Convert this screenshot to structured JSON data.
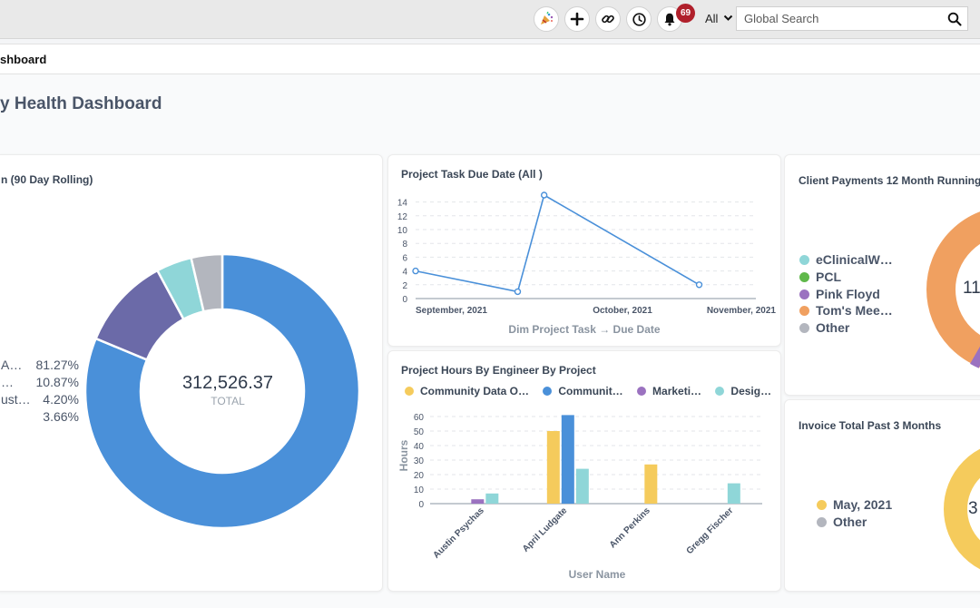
{
  "topbar": {
    "notification_count": "69",
    "search_scope": "All",
    "search_placeholder": "Global Search",
    "icons": [
      "party-popper-icon",
      "plus-icon",
      "link-icon",
      "history-icon",
      "bell-icon",
      "chevron-down-icon",
      "search-icon"
    ]
  },
  "breadcrumb": {
    "label": "shboard"
  },
  "page": {
    "title": "y Health Dashboard"
  },
  "colors": {
    "blue": "#4a90d9",
    "purple": "#6b6aa8",
    "teal": "#8fd6d8",
    "gray": "#b3b6be",
    "yellow": "#f5cb5c",
    "violet": "#9b72c0",
    "orange": "#f0a060",
    "green": "#5fb84a",
    "line": "#4a90d9"
  },
  "card1": {
    "title": "n (90 Day Rolling)",
    "total_value": "312,526.37",
    "total_label": "TOTAL",
    "legend": [
      {
        "label": "A…",
        "pct": "81.27%"
      },
      {
        "label": "…",
        "pct": "10.87%"
      },
      {
        "label": "ust…",
        "pct": "4.20%"
      },
      {
        "label": "",
        "pct": "3.66%"
      }
    ]
  },
  "card2": {
    "title": "Project Task Due Date (All )",
    "xlabel": "Dim Project Task → Due Date"
  },
  "card3": {
    "title": "Project Hours By Engineer By Project",
    "legend": [
      "Community Data O…",
      "Communit…",
      "Marketi…",
      "Desig…"
    ],
    "ylabel": "Hours",
    "xlabel": "User Name"
  },
  "card4": {
    "title": "Client Payments 12 Month Running",
    "legend": [
      "eClinicalW…",
      "PCL",
      "Pink Floyd",
      "Tom's Mee…",
      "Other"
    ],
    "center_text": "11"
  },
  "card5": {
    "title": "Invoice Total Past 3 Months",
    "legend": [
      "May, 2021",
      "Other"
    ],
    "center_text": "3"
  },
  "chart_data": [
    {
      "type": "pie",
      "title": "n (90 Day Rolling)",
      "values": [
        81.27,
        10.87,
        4.2,
        3.66
      ],
      "labels": [
        "A…",
        "…",
        "ust…",
        ""
      ],
      "total": "312,526.37"
    },
    {
      "type": "line",
      "title": "Project Task Due Date (All )",
      "xlabel": "Dim Project Task → Due Date",
      "ylabel": "",
      "x_ticks": [
        "September, 2021",
        "October, 2021",
        "November, 2021"
      ],
      "y_ticks": [
        0,
        2,
        4,
        6,
        8,
        10,
        12,
        14
      ],
      "ylim": [
        0,
        15
      ],
      "points": [
        {
          "x": "2021-09-01",
          "y": 4
        },
        {
          "x": "2021-09-28",
          "y": 1
        },
        {
          "x": "2021-10-05",
          "y": 15
        },
        {
          "x": "2021-11-15",
          "y": 2
        }
      ],
      "x_domain": [
        "2021-09-01",
        "2021-11-30"
      ],
      "grid": true
    },
    {
      "type": "bar",
      "title": "Project Hours By Engineer By Project",
      "categories": [
        "Austin Psychas",
        "April Ludgate",
        "Ann Perkins",
        "Gregg Fischer"
      ],
      "series": [
        {
          "name": "Community Data O…",
          "values": [
            0,
            50,
            27,
            0
          ]
        },
        {
          "name": "Communit…",
          "values": [
            0,
            61,
            0,
            0
          ]
        },
        {
          "name": "Marketi…",
          "values": [
            3,
            0,
            0,
            0
          ]
        },
        {
          "name": "Desig…",
          "values": [
            7,
            24,
            0,
            14
          ]
        }
      ],
      "xlabel": "User Name",
      "ylabel": "Hours",
      "y_ticks": [
        0,
        10,
        20,
        30,
        40,
        50,
        60
      ],
      "ylim": [
        0,
        65
      ],
      "grid": true
    }
  ]
}
